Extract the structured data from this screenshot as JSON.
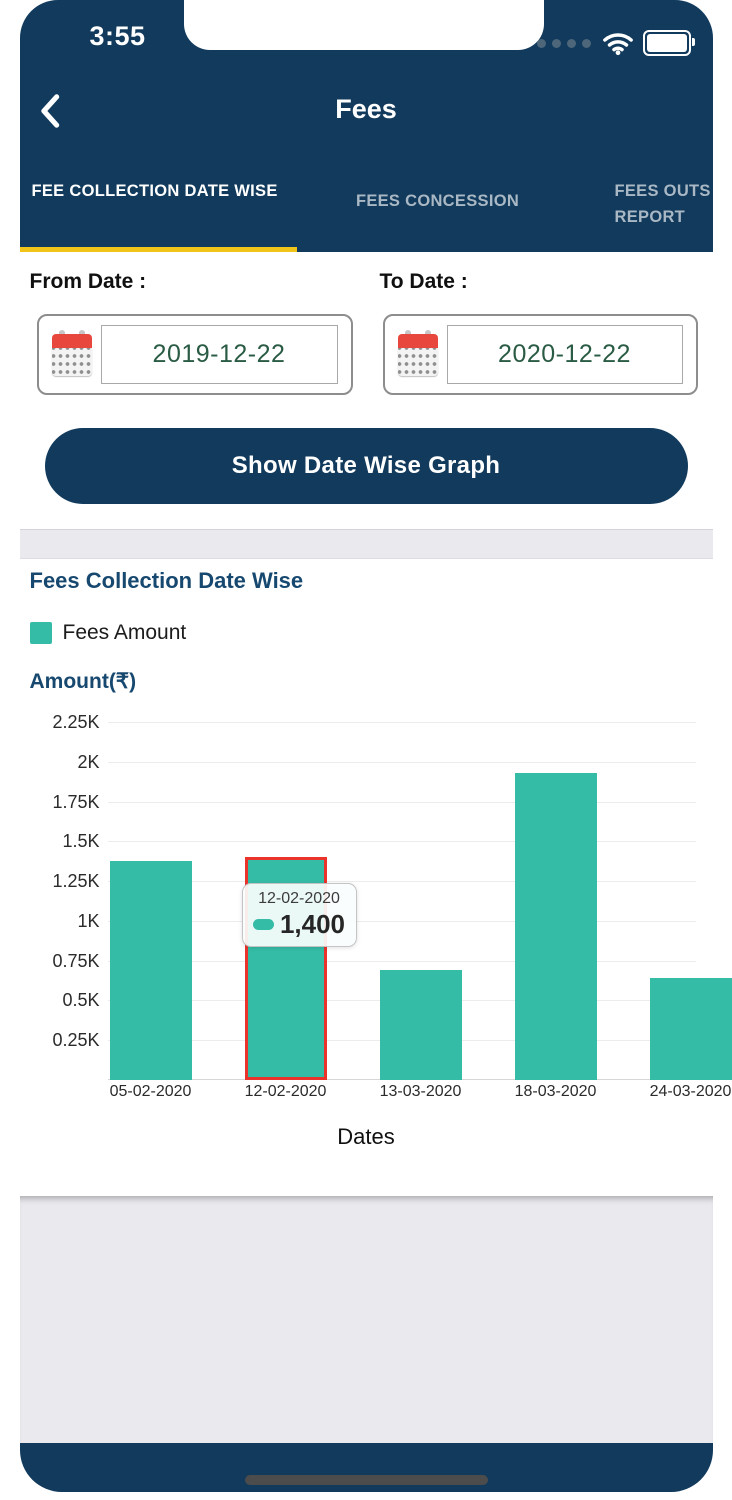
{
  "status_bar": {
    "time": "3:55"
  },
  "header": {
    "title": "Fees"
  },
  "tabs": [
    {
      "label": "FEE COLLECTION DATE WISE",
      "active": true
    },
    {
      "label": "FEES CONCESSION",
      "active": false
    },
    {
      "label": "FEES OUTS REPORT",
      "active": false
    }
  ],
  "filters": {
    "from": {
      "label": "From Date :",
      "value": "2019-12-22"
    },
    "to": {
      "label": "To Date :",
      "value": "2020-12-22"
    }
  },
  "button": {
    "label": "Show Date Wise Graph"
  },
  "chart_data": {
    "type": "bar",
    "title": "Fees Collection Date Wise",
    "xlabel": "Dates",
    "ylabel": "Amount(₹)",
    "categories": [
      "05-02-2020",
      "12-02-2020",
      "13-03-2020",
      "18-03-2020",
      "24-03-2020"
    ],
    "series": [
      {
        "name": "Fees Amount",
        "values": [
          1375,
          1400,
          690,
          1930,
          640
        ]
      }
    ],
    "ylim": [
      0,
      2250
    ],
    "ytick_interval": 250,
    "ytick_labels": [
      "0.25K",
      "0.5K",
      "0.75K",
      "1K",
      "1.25K",
      "1.5K",
      "1.75K",
      "2K",
      "2.25K"
    ],
    "grid": true,
    "legend_position": "top-left",
    "bar_color": "#35bca6",
    "highlighted_index": 1,
    "highlight_color": "#ea332b",
    "tooltip": {
      "date": "12-02-2020",
      "value": "1,400"
    }
  },
  "colors": {
    "navy": "#113a5c",
    "teal": "#35bca6",
    "tab_underline_yellow": "#f0c419",
    "highlight_red": "#ea332b",
    "date_text_green": "#2a5b44",
    "inactive_tab": "#a9b8c4",
    "panel_gray": "#e9e9ee"
  }
}
